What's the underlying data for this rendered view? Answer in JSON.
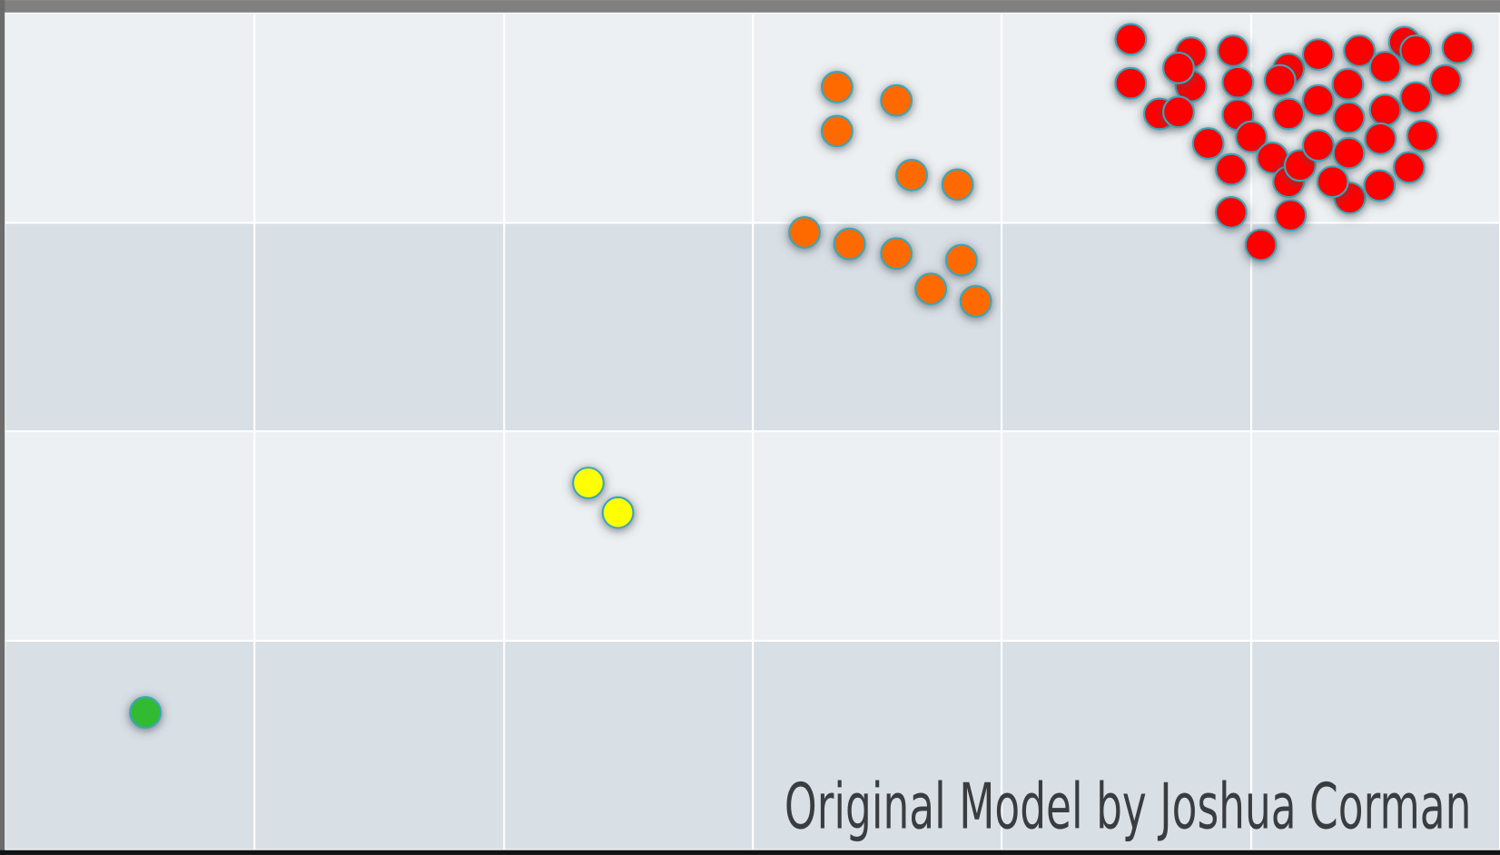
{
  "footer": {
    "credit": "Original Model by Joshua Corman"
  }
}
